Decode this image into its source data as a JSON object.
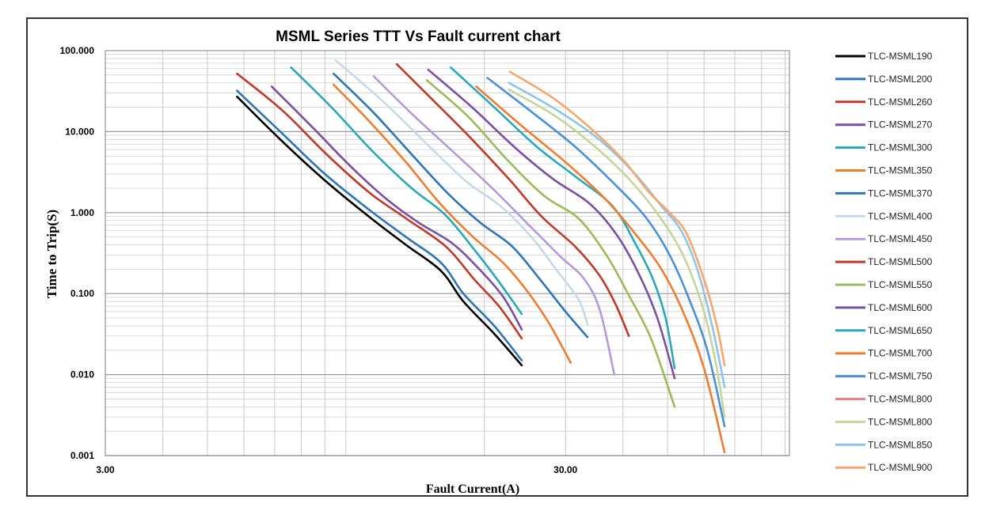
{
  "chart_data": {
    "type": "line",
    "title": "MSML Series TTT Vs Fault current chart",
    "xlabel": "Fault Current(A)",
    "ylabel": "Time to Trip(S)",
    "x_scale": "log",
    "y_scale": "log",
    "xlim": [
      3,
      92
    ],
    "ylim": [
      0.001,
      100
    ],
    "xticks": [
      {
        "value": 3,
        "label": "3.00"
      },
      {
        "value": 30,
        "label": "30.00"
      }
    ],
    "yticks": [
      {
        "value": 100,
        "label": "100.000"
      },
      {
        "value": 10,
        "label": "10.000"
      },
      {
        "value": 1,
        "label": "1.000"
      },
      {
        "value": 0.1,
        "label": "0.100"
      },
      {
        "value": 0.01,
        "label": "0.010"
      },
      {
        "value": 0.001,
        "label": "0.001"
      }
    ],
    "grid": true,
    "legend_position": "right",
    "series": [
      {
        "name": "TLC-MSML190",
        "color": "#000000",
        "points": [
          [
            5.8,
            27
          ],
          [
            7.2,
            8
          ],
          [
            9,
            2.5
          ],
          [
            11.2,
            0.9
          ],
          [
            13.5,
            0.4
          ],
          [
            16.1,
            0.19
          ],
          [
            18,
            0.08
          ],
          [
            21,
            0.032
          ],
          [
            24.1,
            0.013
          ]
        ]
      },
      {
        "name": "TLC-MSML200",
        "color": "#2e75b6",
        "points": [
          [
            5.8,
            32
          ],
          [
            7.2,
            10
          ],
          [
            9,
            3
          ],
          [
            11.2,
            1.1
          ],
          [
            13.5,
            0.5
          ],
          [
            16.1,
            0.24
          ],
          [
            18,
            0.1
          ],
          [
            21,
            0.04
          ],
          [
            24.1,
            0.015
          ]
        ]
      },
      {
        "name": "TLC-MSML260",
        "color": "#c0392b",
        "points": [
          [
            5.8,
            52
          ],
          [
            7.3,
            18
          ],
          [
            9,
            5.5
          ],
          [
            11.2,
            1.8
          ],
          [
            13.5,
            0.85
          ],
          [
            16.5,
            0.38
          ],
          [
            19,
            0.15
          ],
          [
            21.5,
            0.07
          ],
          [
            24.1,
            0.028
          ]
        ]
      },
      {
        "name": "TLC-MSML270",
        "color": "#7b4fa1",
        "points": [
          [
            6.9,
            36
          ],
          [
            8.5,
            11
          ],
          [
            10.2,
            3.8
          ],
          [
            12.2,
            1.5
          ],
          [
            14.4,
            0.75
          ],
          [
            17,
            0.42
          ],
          [
            19.5,
            0.2
          ],
          [
            22,
            0.09
          ],
          [
            24.1,
            0.036
          ]
        ]
      },
      {
        "name": "TLC-MSML300",
        "color": "#2aa8b9",
        "points": [
          [
            7.6,
            62
          ],
          [
            9.3,
            20
          ],
          [
            11.5,
            5.5
          ],
          [
            13.9,
            2
          ],
          [
            16.4,
            0.95
          ],
          [
            19,
            0.35
          ],
          [
            21.5,
            0.14
          ],
          [
            24.1,
            0.056
          ]
        ]
      },
      {
        "name": "TLC-MSML350",
        "color": "#ed7d31",
        "points": [
          [
            9.4,
            38
          ],
          [
            11.3,
            13
          ],
          [
            13.6,
            4
          ],
          [
            16,
            1.3
          ],
          [
            18.9,
            0.5
          ],
          [
            21.8,
            0.25
          ],
          [
            24.4,
            0.12
          ],
          [
            27.5,
            0.045
          ],
          [
            30.8,
            0.014
          ]
        ]
      },
      {
        "name": "TLC-MSML370",
        "color": "#2e75b6",
        "points": [
          [
            9.4,
            52
          ],
          [
            11.5,
            17
          ],
          [
            14,
            5
          ],
          [
            16.7,
            1.7
          ],
          [
            19.6,
            0.75
          ],
          [
            23,
            0.38
          ],
          [
            26.4,
            0.15
          ],
          [
            30,
            0.06
          ],
          [
            33.5,
            0.029
          ]
        ]
      },
      {
        "name": "TLC-MSML400",
        "color": "#c5d9ea",
        "points": [
          [
            9.5,
            76
          ],
          [
            12.1,
            23
          ],
          [
            15.2,
            6.5
          ],
          [
            18.3,
            2.4
          ],
          [
            21.7,
            1.2
          ],
          [
            25.3,
            0.5
          ],
          [
            28.6,
            0.2
          ],
          [
            32,
            0.085
          ],
          [
            33.5,
            0.042
          ]
        ]
      },
      {
        "name": "TLC-MSML450",
        "color": "#b19cd9",
        "points": [
          [
            11.5,
            48
          ],
          [
            14,
            16
          ],
          [
            17.5,
            5
          ],
          [
            21,
            1.9
          ],
          [
            25,
            0.7
          ],
          [
            29.2,
            0.29
          ],
          [
            33,
            0.15
          ],
          [
            35.7,
            0.06
          ],
          [
            38.3,
            0.01
          ]
        ]
      },
      {
        "name": "TLC-MSML500",
        "color": "#c0392b",
        "points": [
          [
            12.9,
            68
          ],
          [
            15.4,
            25
          ],
          [
            18.8,
            8
          ],
          [
            22.6,
            2.6
          ],
          [
            26.6,
            0.9
          ],
          [
            31.5,
            0.38
          ],
          [
            35.5,
            0.17
          ],
          [
            38.5,
            0.075
          ],
          [
            41.2,
            0.03
          ]
        ]
      },
      {
        "name": "TLC-MSML550",
        "color": "#9bbb59",
        "points": [
          [
            15,
            43
          ],
          [
            18.5,
            15
          ],
          [
            22.4,
            4.5
          ],
          [
            27,
            1.6
          ],
          [
            32,
            0.85
          ],
          [
            36.8,
            0.3
          ],
          [
            41,
            0.1
          ],
          [
            46,
            0.028
          ],
          [
            51.8,
            0.004
          ]
        ]
      },
      {
        "name": "TLC-MSML600",
        "color": "#7b4fa1",
        "points": [
          [
            15.1,
            58
          ],
          [
            18.8,
            20
          ],
          [
            23.2,
            6.5
          ],
          [
            28.2,
            2.6
          ],
          [
            33.8,
            1.3
          ],
          [
            38.6,
            0.55
          ],
          [
            43,
            0.19
          ],
          [
            47.5,
            0.05
          ],
          [
            51.8,
            0.009
          ]
        ]
      },
      {
        "name": "TLC-MSML650",
        "color": "#2aa8b9",
        "points": [
          [
            16.9,
            62
          ],
          [
            21,
            20
          ],
          [
            26,
            6.5
          ],
          [
            31.5,
            2.8
          ],
          [
            38,
            1.2
          ],
          [
            42.5,
            0.42
          ],
          [
            46.5,
            0.15
          ],
          [
            49.5,
            0.05
          ],
          [
            51.8,
            0.012
          ]
        ]
      },
      {
        "name": "TLC-MSML700",
        "color": "#ed7d31",
        "points": [
          [
            19.2,
            36
          ],
          [
            24,
            12
          ],
          [
            30,
            4.2
          ],
          [
            36.5,
            1.5
          ],
          [
            42.5,
            0.55
          ],
          [
            48.5,
            0.2
          ],
          [
            54,
            0.06
          ],
          [
            60,
            0.012
          ],
          [
            66.5,
            0.0011
          ]
        ]
      },
      {
        "name": "TLC-MSML750",
        "color": "#4a90d9",
        "points": [
          [
            20.3,
            46
          ],
          [
            25.5,
            17
          ],
          [
            31.5,
            6.5
          ],
          [
            38.5,
            2.2
          ],
          [
            45,
            0.85
          ],
          [
            50.5,
            0.3
          ],
          [
            55.5,
            0.09
          ],
          [
            61,
            0.02
          ],
          [
            66.5,
            0.0023
          ]
        ]
      },
      {
        "name": "TLC-MSML800",
        "color": "#f08080",
        "points": []
      },
      {
        "name": "TLC-MSML800",
        "color": "#c4d79b",
        "points": [
          [
            22.6,
            33
          ],
          [
            28.3,
            16
          ],
          [
            34.8,
            6.5
          ],
          [
            41.5,
            2.5
          ],
          [
            48,
            0.9
          ],
          [
            54,
            0.3
          ],
          [
            59.5,
            0.07
          ],
          [
            63.5,
            0.015
          ],
          [
            66.5,
            0.003
          ]
        ]
      },
      {
        "name": "TLC-MSML850",
        "color": "#8fc4e8",
        "points": [
          [
            22.6,
            40
          ],
          [
            28.5,
            19
          ],
          [
            35.5,
            8
          ],
          [
            42.5,
            3
          ],
          [
            48.5,
            1.2
          ],
          [
            53.5,
            0.6
          ],
          [
            58,
            0.2
          ],
          [
            62.5,
            0.04
          ],
          [
            66.5,
            0.007
          ]
        ]
      },
      {
        "name": "TLC-MSML900",
        "color": "#f9a66c",
        "points": [
          [
            22.7,
            55
          ],
          [
            28.2,
            26
          ],
          [
            34,
            11
          ],
          [
            40,
            4.5
          ],
          [
            45.5,
            1.8
          ],
          [
            50.5,
            1
          ],
          [
            55,
            0.55
          ],
          [
            60,
            0.15
          ],
          [
            64,
            0.04
          ],
          [
            66.5,
            0.013
          ]
        ]
      }
    ]
  }
}
